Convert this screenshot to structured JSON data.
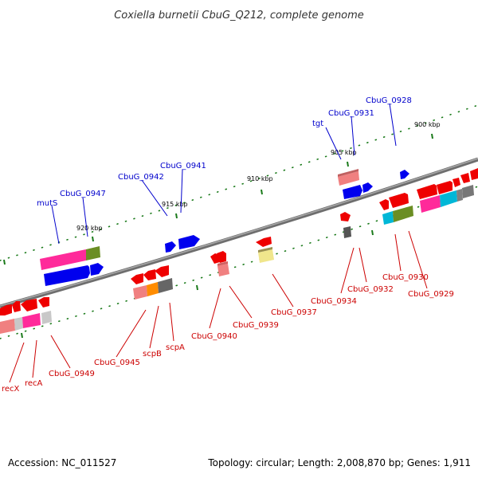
{
  "title": "Coxiella burnetii CbuG_Q212, complete genome",
  "accession": "Accession: NC_011527",
  "topology": "Topology: circular; Length: 2,008,870 bp; Genes: 1,911",
  "colors": {
    "backbone": "#808080",
    "forward_gene": "#0000ee",
    "reverse_gene": "#ee0000",
    "label_forward": "#0000cc",
    "label_reverse": "#cc0000",
    "tick": "#1a7a1a",
    "cog_pink": "#ff2a9a",
    "cog_olive": "#6b8e23",
    "cog_salmon": "#f08080",
    "cog_grey": "#808080",
    "cog_dark_grey": "#555555",
    "cog_orange": "#ff8c00",
    "cog_cyan": "#00b7d7",
    "cog_light_yellow": "#f0e68c",
    "cog_light_grey": "#c8c8c8"
  },
  "kbp_labels": [
    "900 kbp",
    "905 kbp",
    "910 kbp",
    "915 kbp",
    "920 kbp"
  ],
  "forward_labels": [
    "CbuG_0928",
    "CbuG_0931",
    "tgt",
    "CbuG_0941",
    "CbuG_0942",
    "CbuG_0947",
    "mutS"
  ],
  "reverse_labels": [
    "CbuG_0930",
    "CbuG_0929",
    "CbuG_0932",
    "CbuG_0934",
    "CbuG_0937",
    "CbuG_0939",
    "CbuG_0940",
    "CbuG_0945",
    "scpB",
    "scpA",
    "CbuG_0949",
    "recA",
    "recX"
  ]
}
